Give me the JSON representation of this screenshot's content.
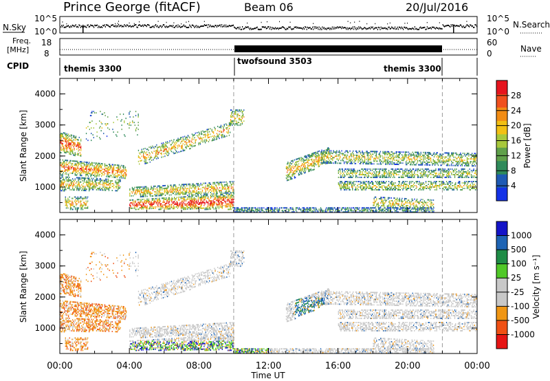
{
  "header": {
    "station": "Prince George (fitACF)",
    "beam": "Beam 06",
    "date": "20/Jul/2016"
  },
  "strip_labels": {
    "nsky": "N.Sky",
    "nsearch": "N.Search",
    "freq_line1": "Freq.",
    "freq_line2": "[MHz]",
    "nave": "Nave",
    "cpid": "CPID",
    "nsky_ticks": [
      "10^5",
      "10^0"
    ],
    "nsearch_ticks": [
      "10^5",
      "10^0"
    ],
    "freq_ticks": [
      "18",
      "8"
    ],
    "nave_ticks": [
      "60",
      "0"
    ]
  },
  "cpid_segments": [
    {
      "label": "themis 3300",
      "start_hour": 0,
      "end_hour": 10
    },
    {
      "label": "twofsound 3503",
      "start_hour": 10,
      "end_hour": 22
    },
    {
      "label": "themis 3300",
      "start_hour": 22,
      "end_hour": 24
    }
  ],
  "colors": {
    "power_scale": [
      "#1432e6",
      "#1e5ab4",
      "#2f8a5a",
      "#5fa04a",
      "#a8c83c",
      "#f2c014",
      "#f28c14",
      "#f0501e",
      "#e6141e"
    ],
    "velocity_scale": [
      "#1414c8",
      "#1e64b4",
      "#1e8c46",
      "#50c828",
      "#c8c8c8",
      "#c8c8c8",
      "#f09614",
      "#f05014",
      "#e61414"
    ],
    "scatter_gray": "#c8c8c8"
  },
  "chart_data": [
    {
      "type": "heatmap",
      "name_hint": "power",
      "ylabel": "Slant Range [km]",
      "xlabel": "Time UT",
      "xlim": [
        0,
        24
      ],
      "ylim": [
        180,
        4500
      ],
      "x_ticks": [
        "00:00",
        "04:00",
        "08:00",
        "12:00",
        "16:00",
        "20:00",
        "00:00"
      ],
      "y_ticks": [
        "1000",
        "2000",
        "3000",
        "4000"
      ],
      "colorbar_label": "Power [dB]",
      "colorbar_ticks": [
        "4",
        "8",
        "12",
        "16",
        "20",
        "24",
        "28"
      ],
      "colorbar_range": [
        0,
        32
      ],
      "mode_change_hours": [
        10,
        22
      ]
    },
    {
      "type": "heatmap",
      "name_hint": "velocity",
      "ylabel": "Slant Range [km]",
      "xlabel": "Time UT",
      "xlim": [
        0,
        24
      ],
      "ylim": [
        180,
        4500
      ],
      "x_ticks": [
        "00:00",
        "04:00",
        "08:00",
        "12:00",
        "16:00",
        "20:00",
        "00:00"
      ],
      "y_ticks": [
        "1000",
        "2000",
        "3000",
        "4000"
      ],
      "colorbar_label": "Velocity [m s⁻¹]",
      "colorbar_ticks": [
        "1000",
        "500",
        "100",
        "25",
        "-25",
        "-100",
        "-500",
        "-1000"
      ],
      "mode_change_hours": [
        10,
        22
      ]
    }
  ],
  "x_axis_title": "Time UT"
}
